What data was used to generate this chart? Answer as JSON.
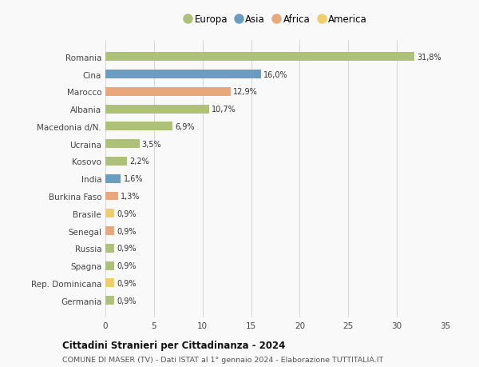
{
  "countries": [
    "Romania",
    "Cina",
    "Marocco",
    "Albania",
    "Macedonia d/N.",
    "Ucraina",
    "Kosovo",
    "India",
    "Burkina Faso",
    "Brasile",
    "Senegal",
    "Russia",
    "Spagna",
    "Rep. Dominicana",
    "Germania"
  ],
  "values": [
    31.8,
    16.0,
    12.9,
    10.7,
    6.9,
    3.5,
    2.2,
    1.6,
    1.3,
    0.9,
    0.9,
    0.9,
    0.9,
    0.9,
    0.9
  ],
  "labels": [
    "31,8%",
    "16,0%",
    "12,9%",
    "10,7%",
    "6,9%",
    "3,5%",
    "2,2%",
    "1,6%",
    "1,3%",
    "0,9%",
    "0,9%",
    "0,9%",
    "0,9%",
    "0,9%",
    "0,9%"
  ],
  "continents": [
    "Europa",
    "Asia",
    "Africa",
    "Europa",
    "Europa",
    "Europa",
    "Europa",
    "Asia",
    "Africa",
    "America",
    "Africa",
    "Europa",
    "Europa",
    "America",
    "Europa"
  ],
  "colors": {
    "Asia": "#6b9dc2",
    "Africa": "#e8a87c",
    "America": "#f0d070"
  },
  "colors_fixed": {
    "Europa": "#adc178",
    "Asia": "#6b9dc2",
    "Africa": "#e8a87c",
    "America": "#f0ce6a"
  },
  "legend_order": [
    "Europa",
    "Asia",
    "Africa",
    "America"
  ],
  "legend_colors": [
    "#adc178",
    "#6b9dc2",
    "#e8a87c",
    "#f0ce6a"
  ],
  "xlim": [
    0,
    35
  ],
  "xticks": [
    0,
    5,
    10,
    15,
    20,
    25,
    30,
    35
  ],
  "title": "Cittadini Stranieri per Cittadinanza - 2024",
  "subtitle": "COMUNE DI MASER (TV) - Dati ISTAT al 1° gennaio 2024 - Elaborazione TUTTITALIA.IT",
  "background_color": "#f9f9f9",
  "grid_color": "#d8d8d8"
}
